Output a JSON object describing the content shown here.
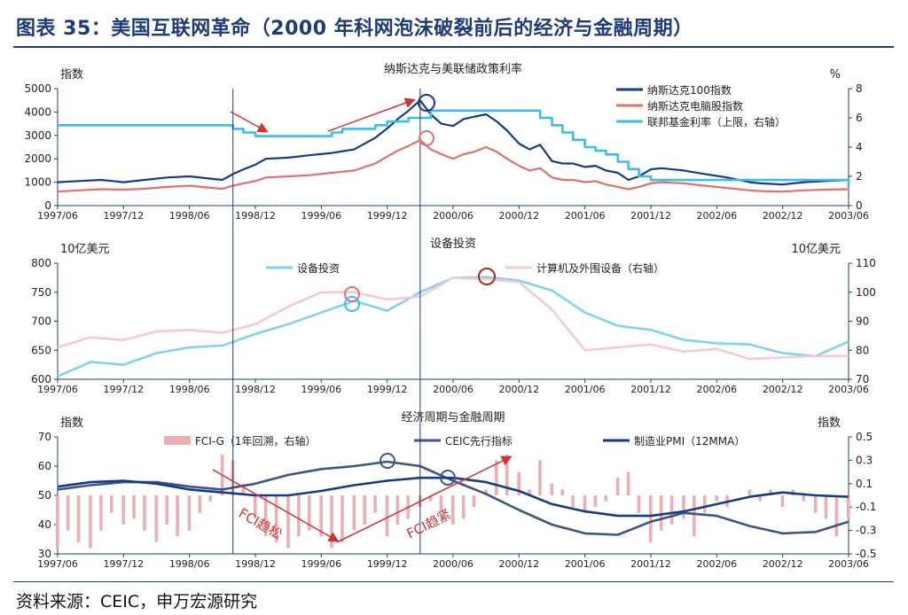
{
  "header": {
    "title": "图表 35：美国互联网革命（2000 年科网泡沫破裂前后的经济与金融周期）"
  },
  "footer": {
    "source": "资料来源：CEIC，申万宏源研究"
  },
  "colors": {
    "navy": "#163a8a",
    "pink": "#e0706a",
    "cyan": "#3cbde8",
    "lightcyan": "#7fd3ef",
    "lightpink": "#f6cacd",
    "slate": "#3b5680",
    "bar": "#e9b0b3",
    "axis": "#1f3a7a",
    "arrow": "#cf3434",
    "circle": "#a42a2a"
  },
  "chart_data": [
    {
      "type": "line",
      "title": "纳斯达克与美联储政策利率",
      "ylabel": "指数",
      "y2label": "%",
      "ylim": [
        0,
        5000
      ],
      "y2lim": [
        0,
        8
      ],
      "yticks": [
        "0",
        "1000",
        "2000",
        "3000",
        "4000",
        "5000"
      ],
      "y2ticks": [
        "0",
        "2",
        "4",
        "6",
        "8"
      ],
      "xticks": [
        "1997/06",
        "1997/12",
        "1998/06",
        "1998/12",
        "1999/06",
        "1999/12",
        "2000/06",
        "2000/12",
        "2001/06",
        "2001/12",
        "2002/06",
        "2002/12",
        "2003/06"
      ],
      "series": [
        {
          "name": "纳斯达克100指数",
          "axis": "left",
          "color": "navy",
          "x": [
            1997.42,
            1997.58,
            1997.75,
            1997.92,
            1998.08,
            1998.25,
            1998.42,
            1998.58,
            1998.67,
            1998.75,
            1998.83,
            1998.92,
            1999.0,
            1999.17,
            1999.33,
            1999.5,
            1999.67,
            1999.83,
            1999.92,
            2000.0,
            2000.08,
            2000.17,
            2000.25,
            2000.33,
            2000.42,
            2000.5,
            2000.58,
            2000.67,
            2000.75,
            2000.83,
            2000.92,
            2001.0,
            2001.08,
            2001.17,
            2001.25,
            2001.33,
            2001.42,
            2001.5,
            2001.58,
            2001.67,
            2001.75,
            2001.83,
            2001.92,
            2002.0,
            2002.17,
            2002.33,
            2002.5,
            2002.67,
            2002.75,
            2002.92,
            2003.08,
            2003.25,
            2003.42
          ],
          "y": [
            1000,
            1050,
            1100,
            1000,
            1100,
            1200,
            1250,
            1150,
            1100,
            1350,
            1550,
            1750,
            2000,
            2050,
            2150,
            2250,
            2400,
            2900,
            3300,
            3700,
            4050,
            4500,
            3900,
            3500,
            3400,
            3700,
            3800,
            3900,
            3600,
            3200,
            2650,
            2400,
            2600,
            1900,
            1800,
            1800,
            1650,
            1700,
            1500,
            1400,
            1100,
            1250,
            1550,
            1600,
            1500,
            1350,
            1200,
            1000,
            950,
            900,
            1000,
            1050,
            1100
          ]
        },
        {
          "name": "纳斯达克电脑股指数",
          "axis": "left",
          "color": "pink",
          "x": [
            1997.42,
            1997.58,
            1997.75,
            1997.92,
            1998.08,
            1998.25,
            1998.42,
            1998.58,
            1998.67,
            1998.75,
            1998.83,
            1998.92,
            1999.0,
            1999.17,
            1999.33,
            1999.5,
            1999.67,
            1999.83,
            1999.92,
            2000.0,
            2000.08,
            2000.17,
            2000.25,
            2000.33,
            2000.42,
            2000.5,
            2000.58,
            2000.67,
            2000.75,
            2000.83,
            2000.92,
            2001.0,
            2001.08,
            2001.17,
            2001.25,
            2001.33,
            2001.42,
            2001.5,
            2001.58,
            2001.67,
            2001.75,
            2001.83,
            2001.92,
            2002.0,
            2002.17,
            2002.33,
            2002.5,
            2002.67,
            2002.75,
            2002.92,
            2003.08,
            2003.25,
            2003.42
          ],
          "y": [
            600,
            650,
            700,
            680,
            720,
            800,
            850,
            760,
            720,
            850,
            950,
            1050,
            1200,
            1250,
            1300,
            1400,
            1500,
            1800,
            2100,
            2350,
            2550,
            2800,
            2400,
            2200,
            2000,
            2200,
            2300,
            2500,
            2300,
            2000,
            1700,
            1500,
            1600,
            1200,
            1100,
            1100,
            1000,
            1050,
            900,
            800,
            700,
            800,
            950,
            1000,
            950,
            850,
            750,
            650,
            620,
            600,
            650,
            680,
            700
          ]
        },
        {
          "name": "联邦基金利率（上限，右轴）",
          "axis": "right",
          "color": "cyan",
          "x": [
            1997.42,
            1998.67,
            1998.75,
            1998.83,
            1998.92,
            1999.42,
            1999.5,
            1999.58,
            1999.83,
            1999.92,
            2000.08,
            2000.25,
            2000.42,
            2000.58,
            2001.0,
            2001.08,
            2001.17,
            2001.25,
            2001.33,
            2001.42,
            2001.5,
            2001.58,
            2001.67,
            2001.75,
            2001.83,
            2001.92,
            2002.92,
            2003.42
          ],
          "y": [
            5.5,
            5.5,
            5.25,
            5.0,
            4.75,
            4.75,
            5.0,
            5.25,
            5.5,
            5.75,
            6.0,
            6.5,
            6.5,
            6.5,
            6.5,
            6.0,
            5.5,
            5.0,
            4.5,
            4.0,
            3.75,
            3.5,
            3.0,
            2.5,
            2.0,
            1.75,
            1.75,
            1.25
          ]
        }
      ]
    },
    {
      "type": "line",
      "title": "设备投资",
      "ylabel": "10亿美元",
      "y2label": "10亿美元",
      "ylim": [
        600,
        800
      ],
      "y2lim": [
        70,
        110
      ],
      "yticks": [
        "600",
        "650",
        "700",
        "750",
        "800"
      ],
      "y2ticks": [
        "70",
        "80",
        "90",
        "100",
        "110"
      ],
      "xticks": [
        "1997/06",
        "1997/12",
        "1998/06",
        "1998/12",
        "1999/06",
        "1999/12",
        "2000/06",
        "2000/12",
        "2001/06",
        "2001/12",
        "2002/06",
        "2002/12",
        "2003/06"
      ],
      "series": [
        {
          "name": "设备投资",
          "axis": "left",
          "color": "lightcyan",
          "x": [
            1997.42,
            1997.67,
            1997.92,
            1998.17,
            1998.42,
            1998.67,
            1998.92,
            1999.17,
            1999.42,
            1999.67,
            1999.92,
            2000.17,
            2000.42,
            2000.67,
            2000.92,
            2001.17,
            2001.42,
            2001.67,
            2001.92,
            2002.17,
            2002.42,
            2002.67,
            2002.92,
            2003.17,
            2003.42
          ],
          "y": [
            605,
            630,
            625,
            645,
            655,
            658,
            678,
            695,
            715,
            735,
            718,
            750,
            775,
            776,
            770,
            753,
            715,
            692,
            685,
            668,
            662,
            660,
            645,
            640,
            665
          ]
        },
        {
          "name": "计算机及外围设备（右轴）",
          "axis": "right",
          "color": "lightpink",
          "x": [
            1997.42,
            1997.67,
            1997.92,
            1998.17,
            1998.42,
            1998.67,
            1998.92,
            1999.17,
            1999.42,
            1999.67,
            1999.92,
            2000.17,
            2000.42,
            2000.67,
            2000.92,
            2001.17,
            2001.42,
            2001.67,
            2001.92,
            2002.17,
            2002.42,
            2002.67,
            2002.92,
            2003.17,
            2003.42
          ],
          "y": [
            81,
            84.5,
            83.5,
            86.5,
            87,
            86,
            89,
            95,
            100,
            100,
            97.5,
            98.5,
            105,
            104.5,
            103.5,
            94,
            80,
            81,
            82,
            79.5,
            80.5,
            77,
            77.5,
            78,
            78
          ]
        }
      ]
    },
    {
      "type": "line",
      "title": "经济周期与金融周期",
      "ylabel": "指数",
      "y2label": "指数",
      "ylim": [
        30,
        70
      ],
      "y2lim": [
        -0.5,
        0.5
      ],
      "yticks": [
        "30",
        "40",
        "50",
        "60",
        "70"
      ],
      "y2ticks": [
        "-0.5",
        "-0.3",
        "-0.1",
        "0.1",
        "0.3",
        "0.5"
      ],
      "xticks": [
        "1997/06",
        "1997/12",
        "1998/06",
        "1998/12",
        "1999/06",
        "1999/12",
        "2000/06",
        "2000/12",
        "2001/06",
        "2001/12",
        "2002/06",
        "2002/12",
        "2003/06"
      ],
      "series": [
        {
          "name": "CEIC先行指标",
          "axis": "left",
          "color": "slate",
          "x": [
            1997.42,
            1997.67,
            1997.92,
            1998.17,
            1998.42,
            1998.67,
            1998.92,
            1999.17,
            1999.42,
            1999.67,
            1999.92,
            2000.17,
            2000.42,
            2000.67,
            2000.92,
            2001.17,
            2001.42,
            2001.67,
            2001.92,
            2002.17,
            2002.42,
            2002.67,
            2002.92,
            2003.17,
            2003.42
          ],
          "y": [
            52,
            53.5,
            54.5,
            54.5,
            53,
            52,
            54,
            57,
            59,
            60,
            61.5,
            60,
            55,
            50.5,
            45,
            40,
            37,
            36.5,
            41,
            44,
            43,
            39.5,
            37,
            37.5,
            41
          ]
        },
        {
          "name": "制造业PMI（12MMA）",
          "axis": "left",
          "color": "navy",
          "x": [
            1997.42,
            1997.67,
            1997.92,
            1998.17,
            1998.42,
            1998.67,
            1998.92,
            1999.17,
            1999.42,
            1999.67,
            1999.92,
            2000.17,
            2000.42,
            2000.67,
            2000.92,
            2001.17,
            2001.42,
            2001.67,
            2001.92,
            2002.17,
            2002.42,
            2002.67,
            2002.92,
            2003.17,
            2003.42
          ],
          "y": [
            53,
            54.5,
            55,
            54,
            52,
            51,
            50,
            50,
            51.5,
            53.5,
            55,
            56,
            56,
            54.5,
            51.5,
            47,
            44.5,
            43,
            43,
            44.5,
            47,
            49.5,
            51,
            50,
            49.5
          ]
        },
        {
          "name": "FCI-G（1年回溯，右轴）",
          "type": "bar",
          "axis": "right",
          "color": "bar",
          "x": [
            1997.42,
            1997.5,
            1997.58,
            1997.67,
            1997.75,
            1997.83,
            1997.92,
            1998.0,
            1998.08,
            1998.17,
            1998.25,
            1998.33,
            1998.42,
            1998.5,
            1998.58,
            1998.67,
            1998.75,
            1998.83,
            1998.92,
            1999.0,
            1999.08,
            1999.17,
            1999.25,
            1999.33,
            1999.42,
            1999.5,
            1999.58,
            1999.67,
            1999.75,
            1999.83,
            1999.92,
            2000.0,
            2000.08,
            2000.17,
            2000.25,
            2000.33,
            2000.42,
            2000.5,
            2000.58,
            2000.67,
            2000.75,
            2000.83,
            2000.92,
            2001.0,
            2001.08,
            2001.17,
            2001.25,
            2001.33,
            2001.42,
            2001.5,
            2001.58,
            2001.67,
            2001.75,
            2001.83,
            2001.92,
            2002.0,
            2002.08,
            2002.17,
            2002.25,
            2002.33,
            2002.42,
            2002.5,
            2002.58,
            2002.67,
            2002.75,
            2002.83,
            2002.92,
            2003.0,
            2003.08,
            2003.17,
            2003.25,
            2003.33,
            2003.42
          ],
          "y": [
            -0.45,
            -0.3,
            -0.4,
            -0.45,
            -0.3,
            -0.15,
            -0.25,
            -0.2,
            -0.3,
            -0.4,
            -0.25,
            -0.35,
            -0.3,
            -0.15,
            -0.05,
            0.35,
            0.3,
            0.1,
            -0.2,
            -0.35,
            -0.4,
            -0.45,
            -0.35,
            -0.3,
            -0.35,
            -0.45,
            -0.4,
            -0.3,
            -0.25,
            -0.15,
            -0.35,
            -0.25,
            -0.2,
            -0.1,
            -0.05,
            -0.15,
            -0.25,
            -0.2,
            -0.1,
            0.05,
            0.3,
            0.35,
            0.2,
            0.05,
            0.3,
            0.1,
            0.05,
            -0.1,
            -0.15,
            -0.1,
            -0.05,
            0.15,
            0.2,
            -0.15,
            -0.4,
            -0.3,
            -0.25,
            -0.2,
            -0.35,
            -0.15,
            -0.05,
            -0.1,
            0.0,
            0.05,
            -0.05,
            0.05,
            -0.1,
            0.05,
            -0.05,
            -0.15,
            -0.2,
            -0.35,
            -0.2
          ]
        }
      ],
      "annotations": [
        "FCI趋松",
        "FCI趋紧"
      ]
    }
  ]
}
